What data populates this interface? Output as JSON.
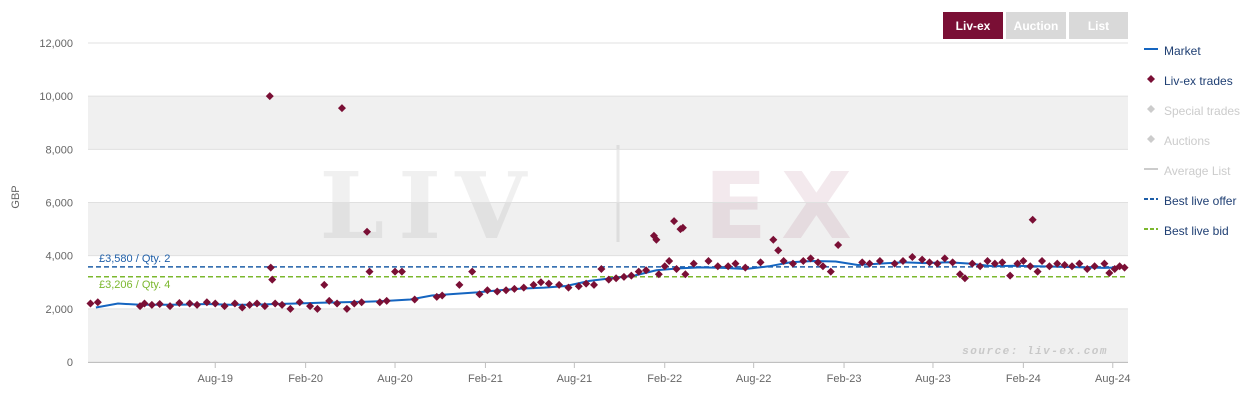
{
  "tabs": [
    {
      "label": "Liv-ex",
      "active": true
    },
    {
      "label": "Auction",
      "active": false
    },
    {
      "label": "List",
      "active": false
    }
  ],
  "legend": [
    {
      "label": "Market",
      "symbol": "line",
      "color": "#1565c0",
      "enabled": true
    },
    {
      "label": "Liv-ex trades",
      "symbol": "diamond",
      "color": "#7a0f35",
      "enabled": true
    },
    {
      "label": "Special trades",
      "symbol": "diamond",
      "color": "#cccccc",
      "enabled": false
    },
    {
      "label": "Auctions",
      "symbol": "diamond",
      "color": "#cccccc",
      "enabled": false
    },
    {
      "label": "Average List",
      "symbol": "line",
      "color": "#cccccc",
      "enabled": false
    },
    {
      "label": "Best live offer",
      "symbol": "dash",
      "color": "#1f5fa8",
      "enabled": true
    },
    {
      "label": "Best live bid",
      "symbol": "dash",
      "color": "#7cb82f",
      "enabled": true
    }
  ],
  "watermark": {
    "left": "LIV",
    "right": "EX"
  },
  "chart_data": {
    "type": "line",
    "title": "",
    "ylabel": "GBP",
    "ylim": [
      0,
      12000
    ],
    "yticks": [
      0,
      2000,
      4000,
      6000,
      8000,
      10000,
      12000
    ],
    "ytick_labels": [
      "0",
      "2,000",
      "4,000",
      "6,000",
      "8,000",
      "10,000",
      "12,000"
    ],
    "xlim": [
      "2018-11-15",
      "2024-09-01"
    ],
    "xticks": [
      "2019-08-01",
      "2020-02-01",
      "2020-08-01",
      "2021-02-01",
      "2021-08-01",
      "2022-02-01",
      "2022-08-01",
      "2023-02-01",
      "2023-08-01",
      "2024-02-01",
      "2024-08-01"
    ],
    "xtick_labels": [
      "Aug-19",
      "Feb-20",
      "Aug-20",
      "Feb-21",
      "Aug-21",
      "Feb-22",
      "Aug-22",
      "Feb-23",
      "Aug-23",
      "Feb-24",
      "Aug-24"
    ],
    "source": "source: liv-ex.com",
    "grid": true,
    "legend_position": "right",
    "series": [
      {
        "name": "Market",
        "color": "#1565c0",
        "points": [
          [
            "2018-12-01",
            2050
          ],
          [
            "2019-01-15",
            2200
          ],
          [
            "2019-03-01",
            2150
          ],
          [
            "2019-04-15",
            2150
          ],
          [
            "2019-06-01",
            2160
          ],
          [
            "2019-07-15",
            2180
          ],
          [
            "2019-09-01",
            2150
          ],
          [
            "2019-10-15",
            2150
          ],
          [
            "2019-12-01",
            2180
          ],
          [
            "2020-01-15",
            2200
          ],
          [
            "2020-03-01",
            2230
          ],
          [
            "2020-04-15",
            2250
          ],
          [
            "2020-06-01",
            2270
          ],
          [
            "2020-07-15",
            2300
          ],
          [
            "2020-09-01",
            2350
          ],
          [
            "2020-10-15",
            2500
          ],
          [
            "2020-12-01",
            2560
          ],
          [
            "2021-01-15",
            2620
          ],
          [
            "2021-03-01",
            2700
          ],
          [
            "2021-04-15",
            2760
          ],
          [
            "2021-06-01",
            2800
          ],
          [
            "2021-07-15",
            2860
          ],
          [
            "2021-09-01",
            3050
          ],
          [
            "2021-10-15",
            3150
          ],
          [
            "2021-12-01",
            3250
          ],
          [
            "2022-01-15",
            3450
          ],
          [
            "2022-03-01",
            3520
          ],
          [
            "2022-04-15",
            3560
          ],
          [
            "2022-06-01",
            3540
          ],
          [
            "2022-07-15",
            3500
          ],
          [
            "2022-09-01",
            3600
          ],
          [
            "2022-10-15",
            3750
          ],
          [
            "2022-12-01",
            3800
          ],
          [
            "2023-01-15",
            3780
          ],
          [
            "2023-03-01",
            3650
          ],
          [
            "2023-04-15",
            3700
          ],
          [
            "2023-06-01",
            3750
          ],
          [
            "2023-07-15",
            3720
          ],
          [
            "2023-09-01",
            3750
          ],
          [
            "2023-10-15",
            3700
          ],
          [
            "2023-12-01",
            3600
          ],
          [
            "2024-01-15",
            3620
          ],
          [
            "2024-03-01",
            3600
          ],
          [
            "2024-04-15",
            3580
          ],
          [
            "2024-06-01",
            3560
          ],
          [
            "2024-07-15",
            3540
          ],
          [
            "2024-08-20",
            3560
          ]
        ]
      },
      {
        "name": "Liv-ex trades",
        "color": "#7a0f35",
        "points": [
          [
            "2018-11-20",
            2200
          ],
          [
            "2018-12-05",
            2250
          ],
          [
            "2019-03-01",
            2100
          ],
          [
            "2019-03-10",
            2200
          ],
          [
            "2019-03-25",
            2150
          ],
          [
            "2019-04-10",
            2180
          ],
          [
            "2019-05-01",
            2100
          ],
          [
            "2019-05-20",
            2220
          ],
          [
            "2019-06-10",
            2200
          ],
          [
            "2019-06-25",
            2150
          ],
          [
            "2019-07-15",
            2250
          ],
          [
            "2019-08-01",
            2200
          ],
          [
            "2019-08-20",
            2100
          ],
          [
            "2019-09-10",
            2200
          ],
          [
            "2019-09-25",
            2050
          ],
          [
            "2019-10-10",
            2150
          ],
          [
            "2019-10-25",
            2200
          ],
          [
            "2019-11-10",
            2100
          ],
          [
            "2019-11-20",
            10000
          ],
          [
            "2019-11-22",
            3550
          ],
          [
            "2019-11-25",
            3100
          ],
          [
            "2019-12-01",
            2200
          ],
          [
            "2019-12-15",
            2150
          ],
          [
            "2020-01-01",
            2000
          ],
          [
            "2020-01-20",
            2250
          ],
          [
            "2020-02-10",
            2100
          ],
          [
            "2020-02-25",
            2000
          ],
          [
            "2020-03-10",
            2900
          ],
          [
            "2020-03-20",
            2300
          ],
          [
            "2020-04-05",
            2200
          ],
          [
            "2020-04-15",
            9550
          ],
          [
            "2020-04-25",
            2000
          ],
          [
            "2020-05-10",
            2200
          ],
          [
            "2020-05-25",
            2250
          ],
          [
            "2020-06-05",
            4900
          ],
          [
            "2020-06-10",
            3400
          ],
          [
            "2020-07-01",
            2250
          ],
          [
            "2020-07-15",
            2300
          ],
          [
            "2020-08-01",
            3400
          ],
          [
            "2020-08-15",
            3400
          ],
          [
            "2020-09-10",
            2350
          ],
          [
            "2020-10-25",
            2450
          ],
          [
            "2020-11-05",
            2500
          ],
          [
            "2020-12-10",
            2900
          ],
          [
            "2021-01-05",
            3400
          ],
          [
            "2021-01-20",
            2550
          ],
          [
            "2021-02-05",
            2700
          ],
          [
            "2021-02-25",
            2650
          ],
          [
            "2021-03-15",
            2700
          ],
          [
            "2021-04-01",
            2750
          ],
          [
            "2021-04-20",
            2800
          ],
          [
            "2021-05-10",
            2900
          ],
          [
            "2021-05-25",
            3000
          ],
          [
            "2021-06-10",
            2950
          ],
          [
            "2021-07-01",
            2900
          ],
          [
            "2021-07-20",
            2800
          ],
          [
            "2021-08-10",
            2850
          ],
          [
            "2021-08-25",
            2950
          ],
          [
            "2021-09-10",
            2900
          ],
          [
            "2021-09-25",
            3500
          ],
          [
            "2021-10-10",
            3100
          ],
          [
            "2021-10-25",
            3150
          ],
          [
            "2021-11-10",
            3200
          ],
          [
            "2021-11-25",
            3250
          ],
          [
            "2021-12-10",
            3400
          ],
          [
            "2021-12-25",
            3450
          ],
          [
            "2022-01-10",
            4750
          ],
          [
            "2022-01-15",
            4600
          ],
          [
            "2022-01-20",
            3300
          ],
          [
            "2022-02-01",
            3600
          ],
          [
            "2022-02-10",
            3800
          ],
          [
            "2022-02-20",
            5300
          ],
          [
            "2022-02-25",
            3500
          ],
          [
            "2022-03-05",
            5000
          ],
          [
            "2022-03-10",
            5050
          ],
          [
            "2022-03-15",
            3300
          ],
          [
            "2022-04-01",
            3700
          ],
          [
            "2022-05-01",
            3800
          ],
          [
            "2022-05-20",
            3600
          ],
          [
            "2022-06-10",
            3600
          ],
          [
            "2022-06-25",
            3700
          ],
          [
            "2022-07-15",
            3550
          ],
          [
            "2022-08-15",
            3750
          ],
          [
            "2022-09-10",
            4600
          ],
          [
            "2022-09-20",
            4200
          ],
          [
            "2022-10-01",
            3800
          ],
          [
            "2022-10-20",
            3700
          ],
          [
            "2022-11-10",
            3800
          ],
          [
            "2022-11-25",
            3900
          ],
          [
            "2022-12-10",
            3750
          ],
          [
            "2022-12-20",
            3600
          ],
          [
            "2023-01-05",
            3400
          ],
          [
            "2023-01-20",
            4400
          ],
          [
            "2023-03-10",
            3750
          ],
          [
            "2023-03-25",
            3700
          ],
          [
            "2023-04-15",
            3800
          ],
          [
            "2023-05-15",
            3700
          ],
          [
            "2023-06-01",
            3800
          ],
          [
            "2023-06-20",
            3950
          ],
          [
            "2023-07-10",
            3850
          ],
          [
            "2023-07-25",
            3750
          ],
          [
            "2023-08-10",
            3700
          ],
          [
            "2023-08-25",
            3900
          ],
          [
            "2023-09-10",
            3750
          ],
          [
            "2023-09-25",
            3300
          ],
          [
            "2023-10-05",
            3150
          ],
          [
            "2023-10-20",
            3700
          ],
          [
            "2023-11-05",
            3600
          ],
          [
            "2023-11-20",
            3800
          ],
          [
            "2023-12-05",
            3700
          ],
          [
            "2023-12-20",
            3750
          ],
          [
            "2024-01-05",
            3250
          ],
          [
            "2024-01-20",
            3700
          ],
          [
            "2024-02-01",
            3800
          ],
          [
            "2024-02-15",
            3600
          ],
          [
            "2024-02-20",
            5350
          ],
          [
            "2024-03-01",
            3400
          ],
          [
            "2024-03-10",
            3800
          ],
          [
            "2024-03-25",
            3600
          ],
          [
            "2024-04-10",
            3700
          ],
          [
            "2024-04-25",
            3650
          ],
          [
            "2024-05-10",
            3600
          ],
          [
            "2024-05-25",
            3700
          ],
          [
            "2024-06-10",
            3500
          ],
          [
            "2024-06-25",
            3600
          ],
          [
            "2024-07-15",
            3700
          ],
          [
            "2024-07-25",
            3350
          ],
          [
            "2024-08-05",
            3500
          ],
          [
            "2024-08-15",
            3600
          ],
          [
            "2024-08-25",
            3550
          ]
        ]
      }
    ],
    "reference_lines": [
      {
        "name": "Best live offer",
        "value": 3580,
        "label": "£3,580 / Qty. 2",
        "color": "#1f5fa8"
      },
      {
        "name": "Best live bid",
        "value": 3206,
        "label": "£3,206 / Qty. 4",
        "color": "#7cb82f"
      }
    ]
  }
}
